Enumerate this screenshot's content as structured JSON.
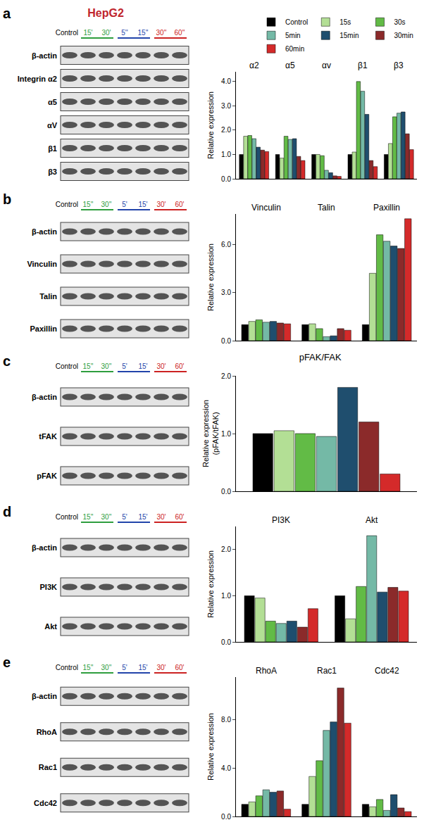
{
  "figure": {
    "cell_line": "HepG2",
    "cell_line_color": "#c0262d",
    "panels": [
      {
        "label": "a",
        "lanes": [
          {
            "text": "Control",
            "color": "#000000"
          },
          {
            "text": "15'",
            "color": "#2e9e3e"
          },
          {
            "text": "30'",
            "color": "#2e9e3e"
          },
          {
            "text": "5''",
            "color": "#2244aa"
          },
          {
            "text": "15''",
            "color": "#2244aa"
          },
          {
            "text": "30''",
            "color": "#cc2222"
          },
          {
            "text": "60''",
            "color": "#cc2222"
          }
        ],
        "rows": [
          "β-actin",
          "Integrin α2",
          "α5",
          "αV",
          "β1",
          "β3"
        ]
      },
      {
        "label": "b",
        "lanes": [
          {
            "text": "Control",
            "color": "#000000"
          },
          {
            "text": "15''",
            "color": "#2e9e3e"
          },
          {
            "text": "30''",
            "color": "#2e9e3e"
          },
          {
            "text": "5'",
            "color": "#2244aa"
          },
          {
            "text": "15'",
            "color": "#2244aa"
          },
          {
            "text": "30'",
            "color": "#cc2222"
          },
          {
            "text": "60'",
            "color": "#cc2222"
          }
        ],
        "rows": [
          "β-actin",
          "Vinculin",
          "Talin",
          "Paxillin"
        ]
      },
      {
        "label": "c",
        "lanes": [
          {
            "text": "Control",
            "color": "#000000"
          },
          {
            "text": "15''",
            "color": "#2e9e3e"
          },
          {
            "text": "30''",
            "color": "#2e9e3e"
          },
          {
            "text": "5'",
            "color": "#2244aa"
          },
          {
            "text": "15'",
            "color": "#2244aa"
          },
          {
            "text": "30'",
            "color": "#cc2222"
          },
          {
            "text": "60'",
            "color": "#cc2222"
          }
        ],
        "rows": [
          "β-actin",
          "tFAK",
          "pFAK"
        ]
      },
      {
        "label": "d",
        "lanes": [
          {
            "text": "Control",
            "color": "#000000"
          },
          {
            "text": "15''",
            "color": "#2e9e3e"
          },
          {
            "text": "30''",
            "color": "#2e9e3e"
          },
          {
            "text": "5'",
            "color": "#2244aa"
          },
          {
            "text": "15'",
            "color": "#2244aa"
          },
          {
            "text": "30'",
            "color": "#cc2222"
          },
          {
            "text": "60'",
            "color": "#cc2222"
          }
        ],
        "rows": [
          "β-actin",
          "PI3K",
          "Akt"
        ]
      },
      {
        "label": "e",
        "lanes": [
          {
            "text": "Control",
            "color": "#000000"
          },
          {
            "text": "15''",
            "color": "#2e9e3e"
          },
          {
            "text": "30''",
            "color": "#2e9e3e"
          },
          {
            "text": "5'",
            "color": "#2244aa"
          },
          {
            "text": "15'",
            "color": "#2244aa"
          },
          {
            "text": "30'",
            "color": "#cc2222"
          },
          {
            "text": "60'",
            "color": "#cc2222"
          }
        ],
        "rows": [
          "β-actin",
          "RhoA",
          "Rac1",
          "Cdc42"
        ]
      }
    ]
  },
  "chart_data": [
    {
      "type": "bar",
      "y_label": "Relative expression",
      "tick_labels": "y",
      "grid": false,
      "legend": "top right",
      "categories": [
        "α2",
        "α5",
        "αv",
        "β1",
        "β3"
      ],
      "ylim": [
        0,
        4.4
      ],
      "yticks": [
        {
          "value": 0,
          "label": "0.0"
        },
        {
          "value": 1,
          "label": "1.0"
        },
        {
          "value": 2,
          "label": "2.0"
        },
        {
          "value": 3,
          "label": "3.0"
        },
        {
          "value": 4,
          "label": "4.0"
        }
      ],
      "series": [
        {
          "name": "Control",
          "color": "#000000",
          "values": [
            1.0,
            1.0,
            1.0,
            1.0,
            1.0
          ]
        },
        {
          "name": "15s",
          "color": "#b3df95",
          "values": [
            1.75,
            0.85,
            1.0,
            1.1,
            1.45
          ]
        },
        {
          "name": "30s",
          "color": "#62bb46",
          "values": [
            1.78,
            1.75,
            0.95,
            4.0,
            2.55
          ]
        },
        {
          "name": "5min",
          "color": "#74b9a6",
          "values": [
            1.65,
            1.62,
            0.35,
            3.6,
            2.7
          ]
        },
        {
          "name": "15min",
          "color": "#1f4e6e",
          "values": [
            1.3,
            1.65,
            0.25,
            2.65,
            2.75
          ]
        },
        {
          "name": "30min",
          "color": "#8b2a2a",
          "values": [
            1.18,
            0.92,
            0.12,
            0.75,
            1.85
          ]
        },
        {
          "name": "60min",
          "color": "#d42a2a",
          "values": [
            1.12,
            0.75,
            0.1,
            0.5,
            1.2
          ]
        }
      ]
    },
    {
      "type": "bar",
      "y_label": "Relative expression",
      "tick_labels": "y",
      "grid": false,
      "categories": [
        "Vinculin",
        "Talin",
        "Paxillin"
      ],
      "ylim": [
        0,
        7.9
      ],
      "yticks": [
        {
          "value": 0,
          "label": "0.0"
        },
        {
          "value": 3,
          "label": "3.0"
        },
        {
          "value": 6,
          "label": "6.0"
        }
      ],
      "series": [
        {
          "name": "Control",
          "color": "#000000",
          "values": [
            1.0,
            1.0,
            1.0
          ]
        },
        {
          "name": "15s",
          "color": "#b3df95",
          "values": [
            1.2,
            1.05,
            4.2
          ]
        },
        {
          "name": "30s",
          "color": "#62bb46",
          "values": [
            1.3,
            0.75,
            6.6
          ]
        },
        {
          "name": "5min",
          "color": "#74b9a6",
          "values": [
            1.15,
            0.25,
            6.2
          ]
        },
        {
          "name": "15min",
          "color": "#1f4e6e",
          "values": [
            1.2,
            0.3,
            5.9
          ]
        },
        {
          "name": "30min",
          "color": "#8b2a2a",
          "values": [
            1.1,
            0.75,
            5.75
          ]
        },
        {
          "name": "60min",
          "color": "#d42a2a",
          "values": [
            1.05,
            0.65,
            7.6
          ]
        }
      ]
    },
    {
      "type": "bar",
      "title": "pFAK/FAK",
      "y_label": "Relative expression\n(pFAK/tFAK)",
      "tick_labels": "y",
      "grid": false,
      "categories": [
        null
      ],
      "ylim": [
        0,
        2.0
      ],
      "yticks": [
        {
          "value": 0,
          "label": "0.0"
        },
        {
          "value": 1,
          "label": "1.0"
        },
        {
          "value": 2,
          "label": "2.0"
        }
      ],
      "series": [
        {
          "name": "Control",
          "color": "#000000",
          "values": [
            1.0
          ]
        },
        {
          "name": "15s",
          "color": "#b3df95",
          "values": [
            1.05
          ]
        },
        {
          "name": "30s",
          "color": "#62bb46",
          "values": [
            1.0
          ]
        },
        {
          "name": "5min",
          "color": "#74b9a6",
          "values": [
            0.95
          ]
        },
        {
          "name": "15min",
          "color": "#1f4e6e",
          "values": [
            1.8
          ]
        },
        {
          "name": "30min",
          "color": "#8b2a2a",
          "values": [
            1.2
          ]
        },
        {
          "name": "60min",
          "color": "#d42a2a",
          "values": [
            0.3
          ]
        }
      ]
    },
    {
      "type": "bar",
      "y_label": "Relative expression",
      "tick_labels": "y",
      "grid": false,
      "categories": [
        "PI3K",
        "Akt"
      ],
      "ylim": [
        0,
        2.5
      ],
      "yticks": [
        {
          "value": 0,
          "label": "0.0"
        },
        {
          "value": 1,
          "label": "1.0"
        },
        {
          "value": 2,
          "label": "2.0"
        }
      ],
      "series": [
        {
          "name": "Control",
          "color": "#000000",
          "values": [
            1.0,
            1.0
          ]
        },
        {
          "name": "15s",
          "color": "#b3df95",
          "values": [
            0.95,
            0.5
          ]
        },
        {
          "name": "30s",
          "color": "#62bb46",
          "values": [
            0.45,
            1.2
          ]
        },
        {
          "name": "5min",
          "color": "#74b9a6",
          "values": [
            0.4,
            2.3
          ]
        },
        {
          "name": "15min",
          "color": "#1f4e6e",
          "values": [
            0.45,
            1.08
          ]
        },
        {
          "name": "30min",
          "color": "#8b2a2a",
          "values": [
            0.32,
            1.18
          ]
        },
        {
          "name": "60min",
          "color": "#d42a2a",
          "values": [
            0.72,
            1.1
          ]
        }
      ]
    },
    {
      "type": "bar",
      "y_label": "Relative expression",
      "tick_labels": "y",
      "grid": false,
      "categories": [
        "RhoA",
        "Rac1",
        "Cdc42"
      ],
      "ylim": [
        0,
        11.5
      ],
      "yticks": [
        {
          "value": 0,
          "label": "0.0"
        },
        {
          "value": 4,
          "label": "4.0"
        },
        {
          "value": 8,
          "label": "8.0"
        }
      ],
      "series": [
        {
          "name": "Control",
          "color": "#000000",
          "values": [
            1.0,
            1.0,
            1.0
          ]
        },
        {
          "name": "15s",
          "color": "#b3df95",
          "values": [
            1.2,
            3.3,
            0.8
          ]
        },
        {
          "name": "30s",
          "color": "#62bb46",
          "values": [
            1.7,
            4.6,
            1.4
          ]
        },
        {
          "name": "5min",
          "color": "#74b9a6",
          "values": [
            2.2,
            7.1,
            0.5
          ]
        },
        {
          "name": "15min",
          "color": "#1f4e6e",
          "values": [
            2.0,
            7.8,
            1.8
          ]
        },
        {
          "name": "30min",
          "color": "#8b2a2a",
          "values": [
            2.1,
            10.6,
            0.7
          ]
        },
        {
          "name": "60min",
          "color": "#d42a2a",
          "values": [
            0.6,
            7.7,
            0.4
          ]
        }
      ]
    }
  ]
}
